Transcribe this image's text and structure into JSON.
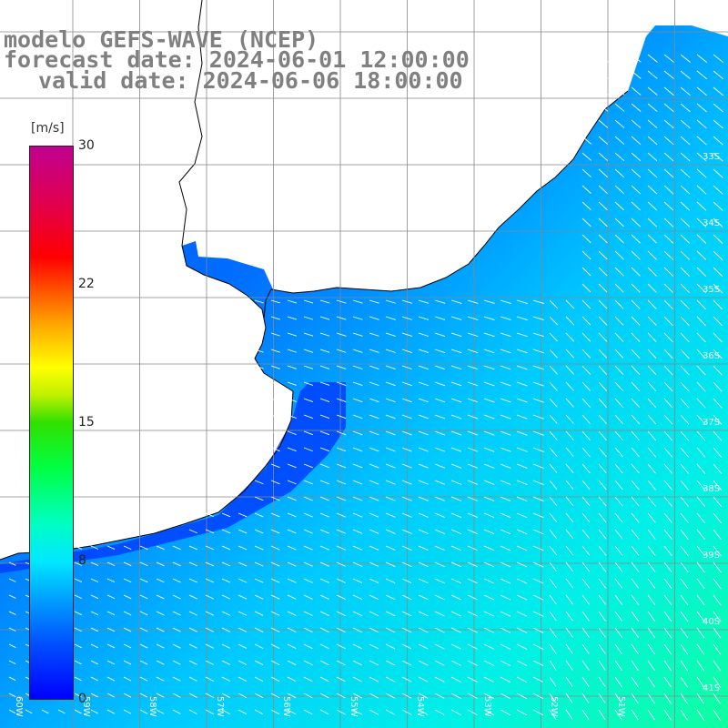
{
  "title": {
    "line1": "modelo GEFS-WAVE (NCEP)",
    "line2": "forecast date: 2024-06-01 12:00:00",
    "line3": "valid date: 2024-06-06 18:00:00"
  },
  "colorbar": {
    "unit": "[m/s]",
    "ticks": [
      "30",
      "22",
      "15",
      "8",
      "0"
    ],
    "min": 0,
    "max": 30,
    "colors": [
      "#0000ff",
      "#00a0ff",
      "#00ffd0",
      "#00ff40",
      "#ffff00",
      "#ff6000",
      "#ff0000",
      "#c00090"
    ]
  },
  "lat_labels": [
    "33S",
    "34S",
    "35S",
    "36S",
    "37S",
    "38S",
    "39S",
    "40S",
    "41S"
  ],
  "lon_labels": [
    "60W",
    "59W",
    "58W",
    "57W",
    "56W",
    "55W",
    "54W",
    "53W",
    "52W",
    "51W"
  ],
  "wind_field": {
    "dominant_direction": "from west / north-west",
    "typical_speed_range_ms": [
      2,
      10
    ]
  }
}
